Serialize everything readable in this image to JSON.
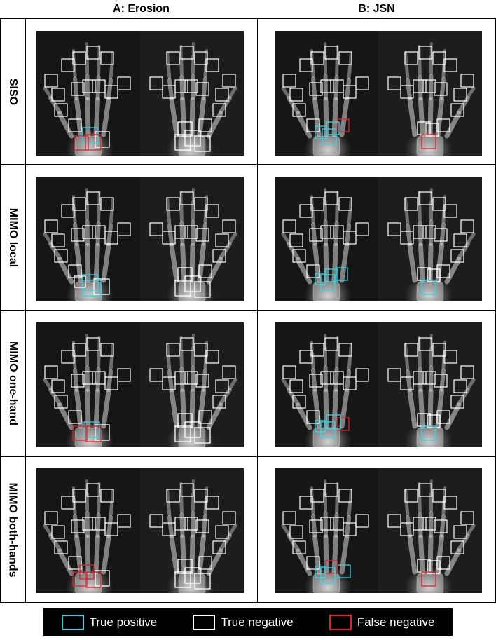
{
  "columns": [
    {
      "label": "A: Erosion"
    },
    {
      "label": "B: JSN"
    }
  ],
  "rows": [
    {
      "label": "SISO"
    },
    {
      "label": "MIMO local"
    },
    {
      "label": "MIMO one-hand"
    },
    {
      "label": "MIMO both-hands"
    }
  ],
  "legend": [
    {
      "label": "True positive",
      "color": "#2fd6e6"
    },
    {
      "label": "True negative",
      "color": "#ffffff"
    },
    {
      "label": "False negative",
      "color": "#e0202a"
    }
  ],
  "box_colors": {
    "tp": "#2fd6e6",
    "tn": "#ffffff",
    "fn": "#e0202a"
  }
}
